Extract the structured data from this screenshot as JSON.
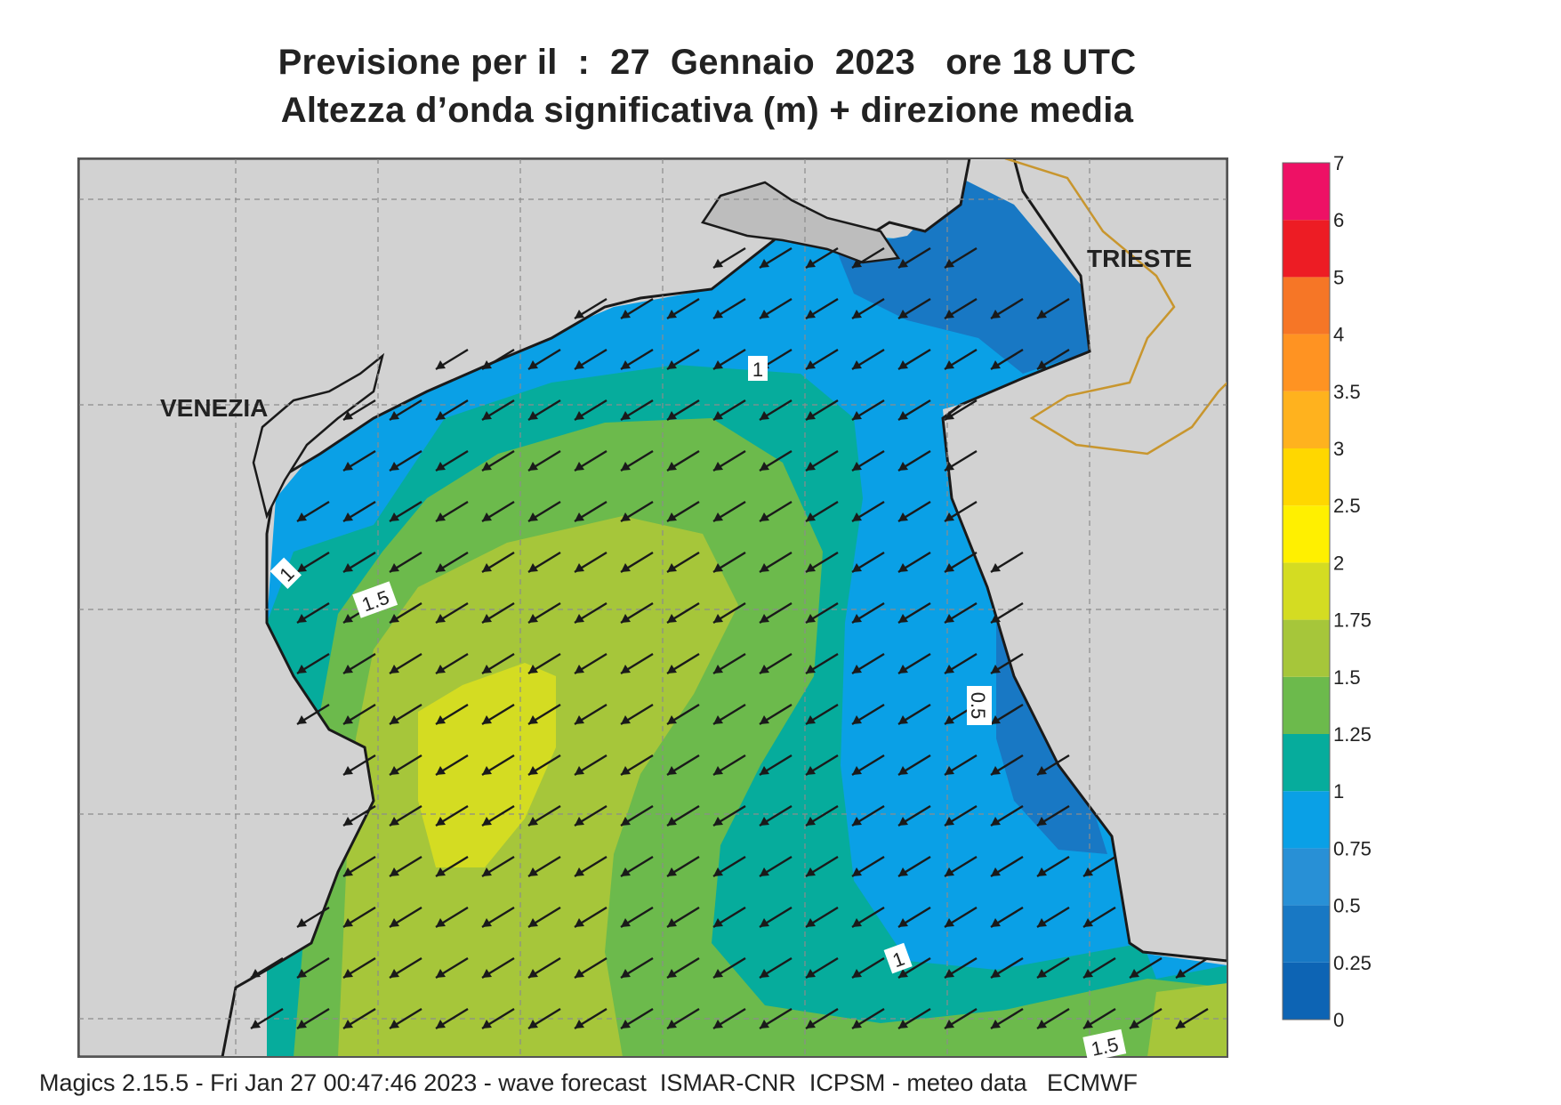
{
  "title_line1": "Previsione per il  :  27  Gennaio  2023   ore 18 UTC",
  "title_line2": "Altezza d’onda significativa (m) + direzione media",
  "footer": "Magics 2.15.5 - Fri Jan 27 00:47:46 2023 - wave forecast  ISMAR-CNR  ICPSM - meteo data   ECMWF",
  "places": [
    {
      "name": "VENEZIA"
    },
    {
      "name": "TRIESTE"
    }
  ],
  "contour_labels": [
    "1",
    "1",
    "1.5",
    "0.5",
    "1",
    "1.5"
  ],
  "legend": {
    "ticks": [
      "0",
      "0.25",
      "0.5",
      "0.75",
      "1",
      "1.25",
      "1.5",
      "1.75",
      "2",
      "2.5",
      "3",
      "3.5",
      "4",
      "5",
      "6",
      "7"
    ],
    "colors": [
      "#0d64b4",
      "#1878c4",
      "#2890d6",
      "#0aa0e6",
      "#06ac9c",
      "#6cba4c",
      "#a6c63a",
      "#d4dc22",
      "#fff000",
      "#ffd700",
      "#ffb21e",
      "#ff9322",
      "#f67626",
      "#ed1c24",
      "#ee1165"
    ]
  },
  "wave_direction": "southwest",
  "colors": {
    "land": "#d2d2d2",
    "coast": "#1a1a1a",
    "border": "#c8962e",
    "arrow": "#1a1a1a"
  }
}
